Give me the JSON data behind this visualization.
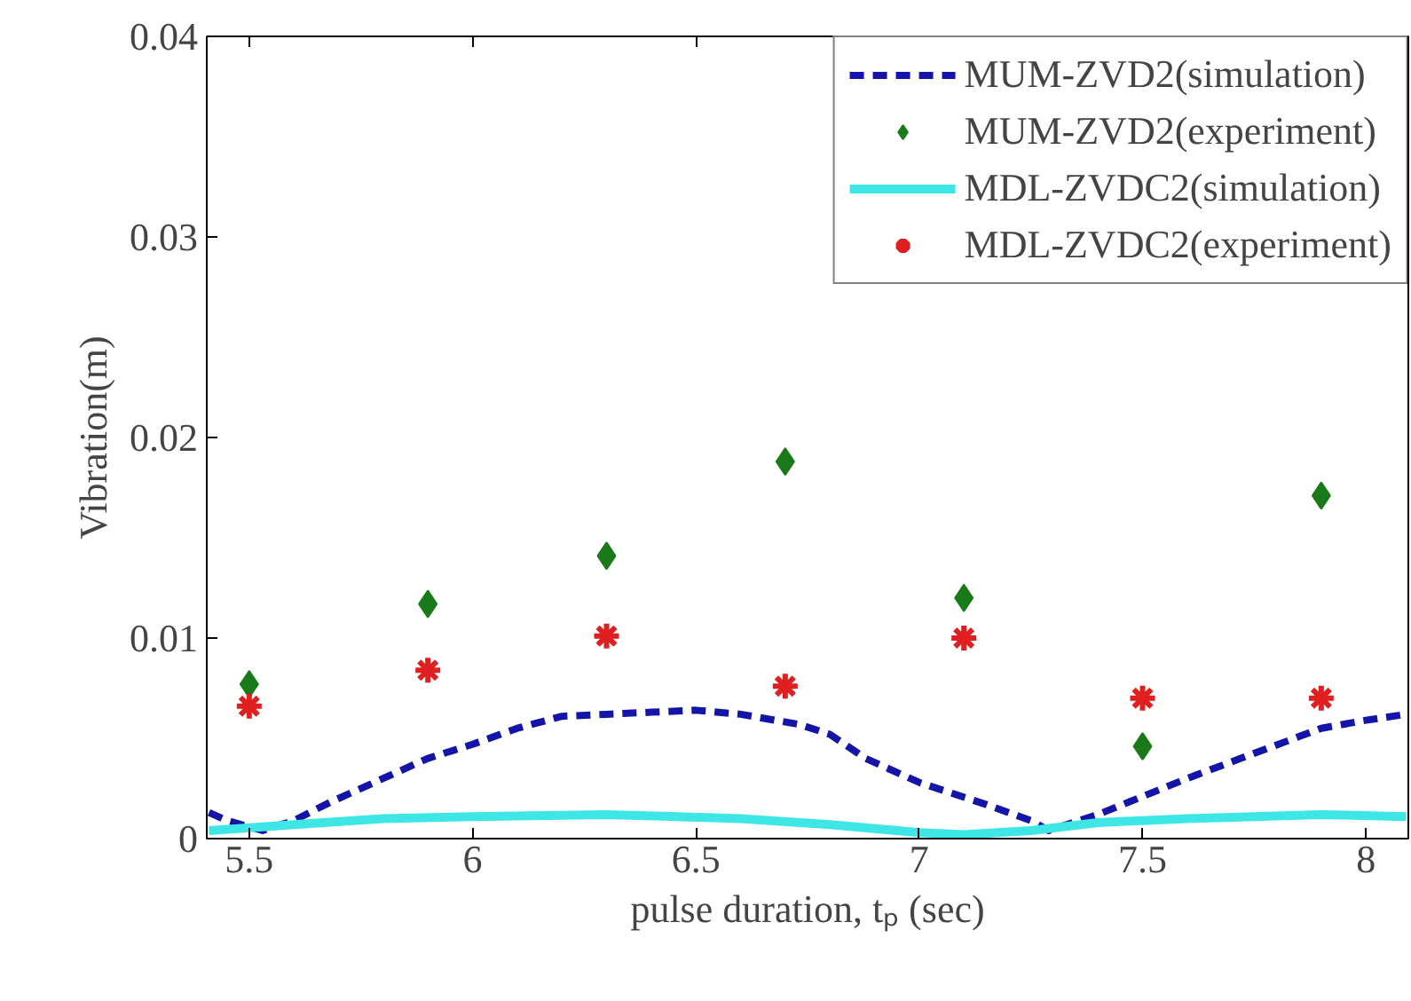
{
  "chart_data": {
    "type": "line",
    "xlabel": "pulse duration, tₚ (sec)",
    "ylabel": "Vibration(m)",
    "xlim": [
      5.405,
      8.095
    ],
    "ylim": [
      0,
      0.04
    ],
    "xticks": [
      5.5,
      6,
      6.5,
      7,
      7.5,
      8
    ],
    "yticks": [
      0,
      0.01,
      0.02,
      0.03,
      0.04
    ],
    "grid": false,
    "legend": "top right",
    "series": [
      {
        "name": "MUM-ZVD2(simulation)",
        "line_style": "dashed",
        "marker": "none",
        "color": "#1414a8",
        "x": [
          5.41,
          5.45,
          5.53,
          5.6,
          5.68,
          5.8,
          5.9,
          6.0,
          6.1,
          6.2,
          6.3,
          6.4,
          6.5,
          6.6,
          6.73,
          6.8,
          6.88,
          7.0,
          7.15,
          7.25,
          7.29,
          7.4,
          7.5,
          7.6,
          7.72,
          7.9,
          8.0,
          8.09
        ],
        "values": [
          0.0013,
          0.0009,
          0.0004,
          0.0009,
          0.0018,
          0.003,
          0.004,
          0.0047,
          0.0055,
          0.0061,
          0.0062,
          0.0063,
          0.0064,
          0.0062,
          0.0057,
          0.0052,
          0.004,
          0.0028,
          0.0017,
          0.0009,
          0.0004,
          0.0012,
          0.0021,
          0.003,
          0.004,
          0.0055,
          0.0059,
          0.0062
        ]
      },
      {
        "name": "MUM-ZVD2(experiment)",
        "type": "scatter",
        "marker": "diamond",
        "color": "#1a7a1a",
        "x": [
          5.5,
          5.9,
          6.3,
          6.7,
          7.1,
          7.5,
          7.9
        ],
        "values": [
          0.0077,
          0.0117,
          0.0141,
          0.0188,
          0.012,
          0.0046,
          0.0171
        ]
      },
      {
        "name": "MDL-ZVDC2(simulation)",
        "line_style": "solid",
        "marker": "none",
        "color": "#3ee6e6",
        "x": [
          5.41,
          5.6,
          5.8,
          6.0,
          6.3,
          6.6,
          6.8,
          7.0,
          7.1,
          7.25,
          7.4,
          7.6,
          7.9,
          8.09
        ],
        "values": [
          0.0004,
          0.0007,
          0.001,
          0.0011,
          0.0012,
          0.001,
          0.0007,
          0.0003,
          0.0002,
          0.0004,
          0.0008,
          0.001,
          0.0012,
          0.0011
        ]
      },
      {
        "name": "MDL-ZVDC2(experiment)",
        "type": "scatter",
        "marker": "cross",
        "color": "#e02020",
        "x": [
          5.5,
          5.9,
          6.3,
          6.7,
          7.1,
          7.5,
          7.9
        ],
        "values": [
          0.0066,
          0.0084,
          0.0101,
          0.0076,
          0.01,
          0.007,
          0.007
        ]
      }
    ]
  }
}
